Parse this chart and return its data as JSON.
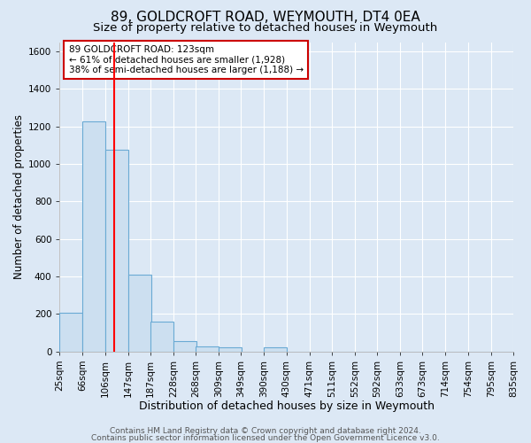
{
  "title1": "89, GOLDCROFT ROAD, WEYMOUTH, DT4 0EA",
  "title2": "Size of property relative to detached houses in Weymouth",
  "xlabel": "Distribution of detached houses by size in Weymouth",
  "ylabel": "Number of detached properties",
  "bin_edges": [
    25,
    66,
    106,
    147,
    187,
    228,
    268,
    309,
    349,
    390,
    430,
    471,
    511,
    552,
    592,
    633,
    673,
    714,
    754,
    795,
    835
  ],
  "bin_labels": [
    "25sqm",
    "66sqm",
    "106sqm",
    "147sqm",
    "187sqm",
    "228sqm",
    "268sqm",
    "309sqm",
    "349sqm",
    "390sqm",
    "430sqm",
    "471sqm",
    "511sqm",
    "552sqm",
    "592sqm",
    "633sqm",
    "673sqm",
    "714sqm",
    "754sqm",
    "795sqm",
    "835sqm"
  ],
  "bar_heights": [
    205,
    1228,
    1075,
    410,
    160,
    55,
    25,
    20,
    0,
    20,
    0,
    0,
    0,
    0,
    0,
    0,
    0,
    0,
    0,
    0
  ],
  "bar_color": "#ccdff0",
  "bar_edge_color": "#6aaad4",
  "red_line_x": 123,
  "ylim": [
    0,
    1650
  ],
  "yticks": [
    0,
    200,
    400,
    600,
    800,
    1000,
    1200,
    1400,
    1600
  ],
  "annotation_title": "89 GOLDCROFT ROAD: 123sqm",
  "annotation_line1": "← 61% of detached houses are smaller (1,928)",
  "annotation_line2": "38% of semi-detached houses are larger (1,188) →",
  "annotation_box_color": "#ffffff",
  "annotation_box_edge": "#cc0000",
  "footer1": "Contains HM Land Registry data © Crown copyright and database right 2024.",
  "footer2": "Contains public sector information licensed under the Open Government Licence v3.0.",
  "bg_color": "#dce8f5",
  "plot_bg_color": "#dce8f5",
  "grid_color": "#ffffff",
  "title1_fontsize": 11,
  "title2_fontsize": 9.5,
  "xlabel_fontsize": 9,
  "ylabel_fontsize": 8.5,
  "tick_fontsize": 7.5,
  "footer_fontsize": 6.5
}
